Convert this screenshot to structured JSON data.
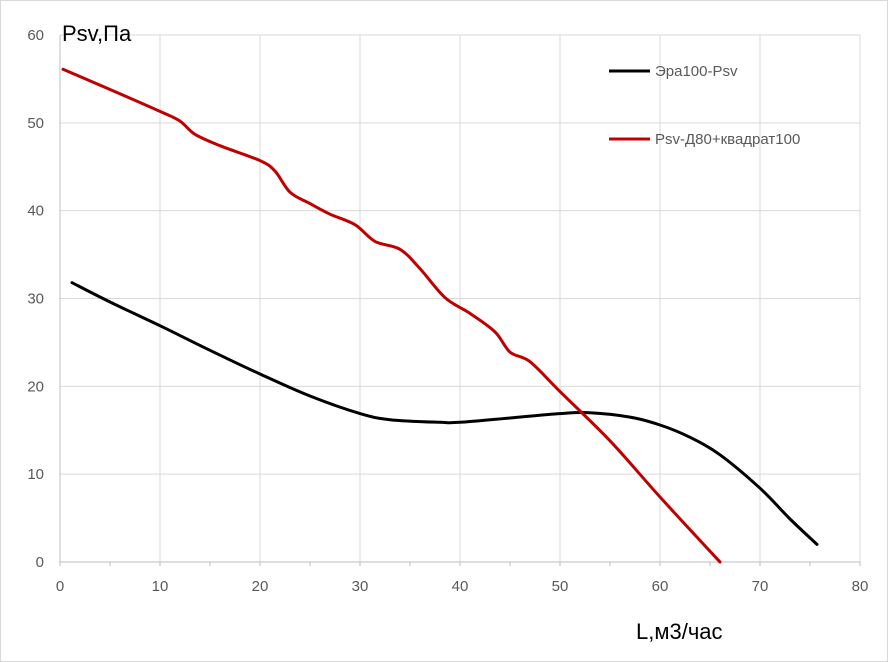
{
  "chart_data": {
    "type": "line",
    "title": "",
    "xlabel": "L,м3/час",
    "ylabel": "Psv,Па",
    "xlim": [
      0,
      80
    ],
    "ylim": [
      0,
      60
    ],
    "x_ticks": [
      0,
      10,
      20,
      30,
      40,
      50,
      60,
      70,
      80
    ],
    "y_ticks": [
      0,
      10,
      20,
      30,
      40,
      50,
      60
    ],
    "grid": true,
    "legend_position": "top-right",
    "series": [
      {
        "name": "Эра100-Psv",
        "color": "#000000",
        "points": [
          [
            1.2,
            31.8
          ],
          [
            5,
            29.6
          ],
          [
            10,
            26.9
          ],
          [
            15,
            24.1
          ],
          [
            20,
            21.4
          ],
          [
            25,
            18.9
          ],
          [
            30,
            16.9
          ],
          [
            33,
            16.2
          ],
          [
            38,
            15.9
          ],
          [
            40,
            15.9
          ],
          [
            45,
            16.4
          ],
          [
            50,
            16.9
          ],
          [
            53,
            17.0
          ],
          [
            57,
            16.5
          ],
          [
            60,
            15.6
          ],
          [
            63,
            14.2
          ],
          [
            66,
            12.2
          ],
          [
            70,
            8.4
          ],
          [
            73,
            4.9
          ],
          [
            75.7,
            2.0
          ]
        ]
      },
      {
        "name": "Psv-Д80+квадрат100",
        "color": "#c00000",
        "points": [
          [
            0.3,
            56.1
          ],
          [
            5,
            53.8
          ],
          [
            10,
            51.3
          ],
          [
            12,
            50.2
          ],
          [
            13.5,
            48.7
          ],
          [
            16,
            47.4
          ],
          [
            20,
            45.7
          ],
          [
            21.5,
            44.5
          ],
          [
            23,
            42.1
          ],
          [
            25,
            40.8
          ],
          [
            27,
            39.6
          ],
          [
            29.5,
            38.4
          ],
          [
            31.5,
            36.5
          ],
          [
            34,
            35.6
          ],
          [
            36,
            33.4
          ],
          [
            38.5,
            30.1
          ],
          [
            41,
            28.3
          ],
          [
            43.5,
            26.2
          ],
          [
            45,
            23.9
          ],
          [
            47,
            22.8
          ],
          [
            50,
            19.4
          ],
          [
            55,
            13.8
          ],
          [
            60,
            7.4
          ],
          [
            66,
            0
          ]
        ]
      }
    ]
  }
}
